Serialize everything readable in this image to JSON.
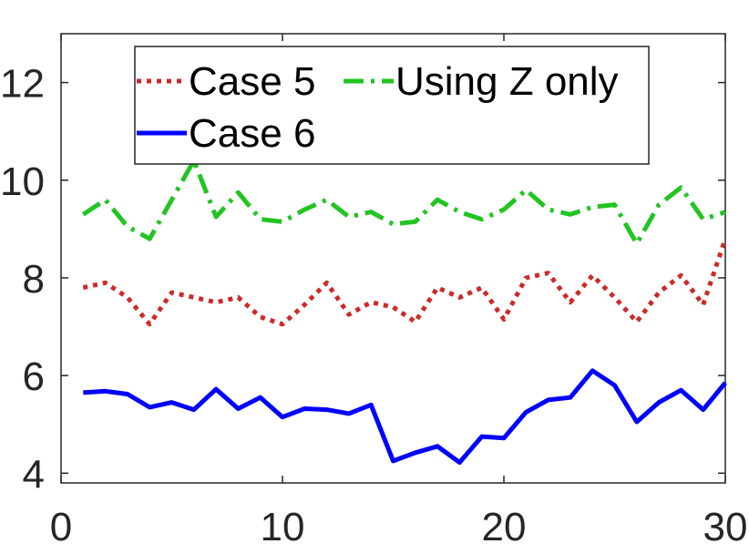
{
  "chart_data": {
    "type": "line",
    "title": "",
    "xlabel": "",
    "ylabel": "",
    "xlim": [
      0,
      30
    ],
    "ylim": [
      3.8,
      13
    ],
    "xticks": [
      0,
      10,
      20,
      30
    ],
    "yticks": [
      4,
      6,
      8,
      10,
      12
    ],
    "xtick_labels": [
      "0",
      "10",
      "20",
      "30"
    ],
    "ytick_labels": [
      "4",
      "6",
      "8",
      "10",
      "12"
    ],
    "grid": false,
    "legend_position": "top",
    "x": [
      1,
      2,
      3,
      4,
      5,
      6,
      7,
      8,
      9,
      10,
      11,
      12,
      13,
      14,
      15,
      16,
      17,
      18,
      19,
      20,
      21,
      22,
      23,
      24,
      25,
      26,
      27,
      28,
      29,
      30
    ],
    "series": [
      {
        "name": "Case 5",
        "color": "#cc2a2a",
        "style": "dotted",
        "values": [
          7.8,
          7.9,
          7.6,
          7.05,
          7.7,
          7.6,
          7.5,
          7.6,
          7.2,
          7.05,
          7.45,
          7.9,
          7.25,
          7.5,
          7.4,
          7.1,
          7.8,
          7.6,
          7.8,
          7.15,
          8.0,
          8.1,
          7.5,
          8.05,
          7.6,
          7.1,
          7.7,
          8.05,
          7.45,
          8.8
        ]
      },
      {
        "name": "Using Z only",
        "color": "#22c422",
        "style": "dashdot",
        "values": [
          9.3,
          9.6,
          9.05,
          8.8,
          9.6,
          10.4,
          9.25,
          9.75,
          9.2,
          9.15,
          9.4,
          9.6,
          9.25,
          9.35,
          9.1,
          9.15,
          9.6,
          9.35,
          9.2,
          9.4,
          9.8,
          9.4,
          9.3,
          9.45,
          9.5,
          8.7,
          9.5,
          9.85,
          9.2,
          9.35
        ]
      },
      {
        "name": "Case 6",
        "color": "#0000ff",
        "style": "solid",
        "values": [
          5.65,
          5.68,
          5.62,
          5.35,
          5.45,
          5.3,
          5.72,
          5.32,
          5.55,
          5.15,
          5.32,
          5.3,
          5.22,
          5.4,
          4.25,
          4.42,
          4.55,
          4.22,
          4.75,
          4.72,
          5.25,
          5.5,
          5.55,
          6.1,
          5.8,
          5.05,
          5.45,
          5.7,
          5.3,
          5.85
        ]
      }
    ]
  }
}
